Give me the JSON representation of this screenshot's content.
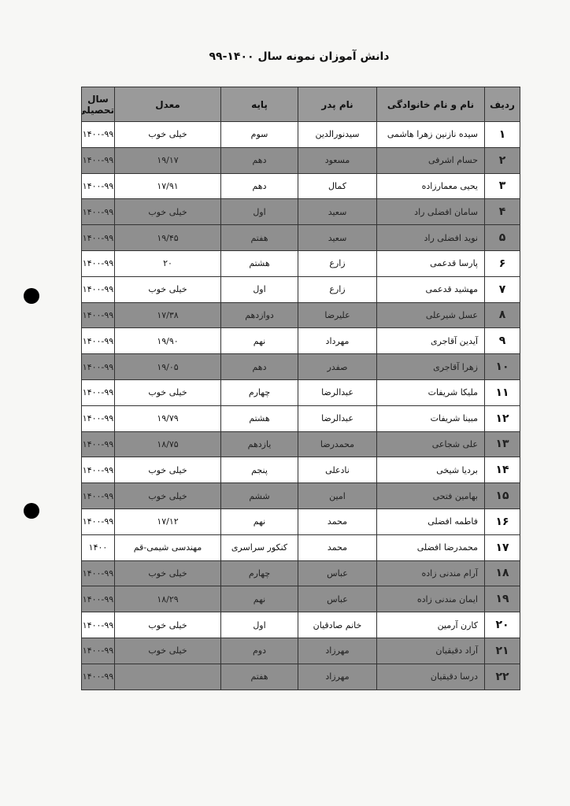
{
  "header": {
    "title": "دانش آموزان نمونه سال ۱۴۰۰-۹۹"
  },
  "table": {
    "columns": [
      "ردیف",
      "نام و نام خانوادگی",
      "نام پدر",
      "پایه",
      "معدل",
      "سال تحصیلی"
    ],
    "rows": [
      [
        "۱",
        "سیده نازنین زهرا هاشمی",
        "سیدنورالدین",
        "سوم",
        "خیلی خوب",
        "۱۴۰۰-۹۹"
      ],
      [
        "۲",
        "حسام اشرفی",
        "مسعود",
        "دهم",
        "۱۹/۱۷",
        "۱۴۰۰-۹۹"
      ],
      [
        "۳",
        "یحیی معمارزاده",
        "کمال",
        "دهم",
        "۱۷/۹۱",
        "۱۴۰۰-۹۹"
      ],
      [
        "۴",
        "سامان افضلی راد",
        "سعید",
        "اول",
        "خیلی خوب",
        "۱۴۰۰-۹۹"
      ],
      [
        "۵",
        "نوید افضلی راد",
        "سعید",
        "هفتم",
        "۱۹/۴۵",
        "۱۴۰۰-۹۹"
      ],
      [
        "۶",
        "پارسا قدعمی",
        "زارع",
        "هشتم",
        "۲۰",
        "۱۴۰۰-۹۹"
      ],
      [
        "۷",
        "مهشید قدعمی",
        "زارع",
        "اول",
        "خیلی خوب",
        "۱۴۰۰-۹۹"
      ],
      [
        "۸",
        "عسل شیرعلی",
        "علیرضا",
        "دوازدهم",
        "۱۷/۳۸",
        "۱۴۰۰-۹۹"
      ],
      [
        "۹",
        "آیدین آقاجری",
        "مهرداد",
        "نهم",
        "۱۹/۹۰",
        "۱۴۰۰-۹۹"
      ],
      [
        "۱۰",
        "زهرا آقاجری",
        "صفدر",
        "دهم",
        "۱۹/۰۵",
        "۱۴۰۰-۹۹"
      ],
      [
        "۱۱",
        "ملیکا شریفات",
        "عبدالرضا",
        "چهارم",
        "خیلی خوب",
        "۱۴۰۰-۹۹"
      ],
      [
        "۱۲",
        "مبینا شریفات",
        "عبدالرضا",
        "هشتم",
        "۱۹/۷۹",
        "۱۴۰۰-۹۹"
      ],
      [
        "۱۳",
        "علی شجاعی",
        "محمدرضا",
        "یازدهم",
        "۱۸/۷۵",
        "۱۴۰۰-۹۹"
      ],
      [
        "۱۴",
        "بردیا شیخی",
        "نادعلی",
        "پنجم",
        "خیلی خوب",
        "۱۴۰۰-۹۹"
      ],
      [
        "۱۵",
        "بهامین فتحی",
        "امین",
        "ششم",
        "خیلی خوب",
        "۱۴۰۰-۹۹"
      ],
      [
        "۱۶",
        "فاطمه افضلی",
        "محمد",
        "نهم",
        "۱۷/۱۲",
        "۱۴۰۰-۹۹"
      ],
      [
        "۱۷",
        "محمدرضا افضلی",
        "محمد",
        "کنکور سراسری",
        "مهندسی شیمی-قم",
        "۱۴۰۰"
      ],
      [
        "۱۸",
        "آرام مندنی زاده",
        "عباس",
        "چهارم",
        "خیلی خوب",
        "۱۴۰۰-۹۹"
      ],
      [
        "۱۹",
        "ایمان مندنی زاده",
        "عباس",
        "نهم",
        "۱۸/۲۹",
        "۱۴۰۰-۹۹"
      ],
      [
        "۲۰",
        "کارن آرمین",
        "خانم صادقیان",
        "اول",
        "خیلی خوب",
        "۱۴۰۰-۹۹"
      ],
      [
        "۲۱",
        "آراد دقیقیان",
        "مهرزاد",
        "دوم",
        "خیلی خوب",
        "۱۴۰۰-۹۹"
      ],
      [
        "۲۲",
        "درسا دقیقیان",
        "مهرزاد",
        "هفتم",
        null,
        "۱۴۰۰-۹۹"
      ]
    ]
  }
}
